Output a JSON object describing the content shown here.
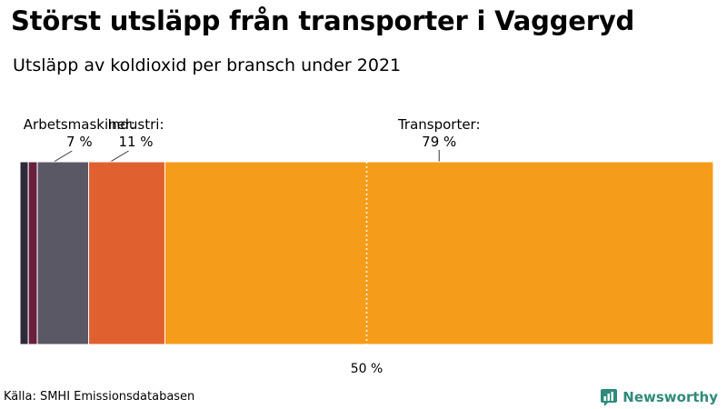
{
  "header": {
    "title": "Störst utsläpp från transporter i Vaggeryd",
    "subtitle": "Utsläpp av koldioxid per bransch under 2021"
  },
  "footer": {
    "source": "Källa: SMHI Emissionsdatabasen",
    "brand": "Newsworthy"
  },
  "colors": {
    "brand": "#2f8a7a"
  },
  "chart_data": {
    "type": "bar",
    "orientation": "horizontal-stacked",
    "xlim": [
      0,
      100
    ],
    "reference_line": {
      "value": 50,
      "label": "50 %"
    },
    "segments": [
      {
        "value": 1.2,
        "color": "#2e2a3b",
        "label": "",
        "value_label": ""
      },
      {
        "value": 1.3,
        "color": "#6b1f3f",
        "label": "",
        "value_label": ""
      },
      {
        "value": 7.4,
        "color": "#5b5866",
        "label": "Arbetsmaskiner:",
        "value_label": "7 %"
      },
      {
        "value": 11.0,
        "color": "#e0612f",
        "label": "Industri:",
        "value_label": "11 %"
      },
      {
        "value": 79.1,
        "color": "#f59c1a",
        "label": "Transporter:",
        "value_label": "79 %"
      }
    ]
  }
}
